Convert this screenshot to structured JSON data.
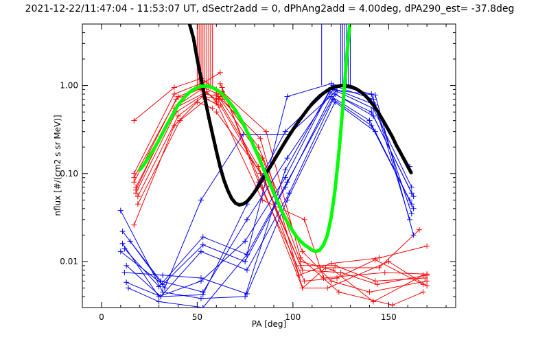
{
  "chart_data": {
    "type": "scatter",
    "title": "2021-12-22/11:47:04 - 11:53:07 UT, dSectr2add = 0, dPhAng2add = 4.00deg, dPA290_est= -37.8deg",
    "xlabel": "PA [deg]",
    "ylabel": "nflux [#/(cm2 s sr MeV)]",
    "xlim": [
      -10,
      185
    ],
    "ylim": [
      0.003,
      5.0
    ],
    "yscale": "log",
    "x_ticks": [
      0,
      50,
      100,
      150
    ],
    "x_tick_labels": [
      "0",
      "50",
      "100",
      "150"
    ],
    "y_ticks": [
      0.01,
      0.1,
      1.0
    ],
    "y_tick_labels": [
      "0.01",
      "0.10",
      "1.00"
    ],
    "grid": false,
    "legend": "none",
    "colors": {
      "red": "#ff0000",
      "blue": "#0000ff",
      "black": "#000000",
      "green": "#00ff00"
    },
    "vertical_lines": [
      {
        "color": "#ff0000",
        "x": [
          50,
          51,
          52,
          53,
          54,
          55,
          56,
          57,
          58
        ],
        "y_from": 0.9,
        "y_to": 5.0
      },
      {
        "color": "#0000ff",
        "x": [
          115,
          125,
          126,
          127,
          128,
          129,
          130
        ],
        "y_from": 1.0,
        "y_to": 5.0
      }
    ],
    "series": [
      {
        "color": "#ff0000",
        "x": [
          17,
          38,
          52,
          60
        ],
        "y": [
          0.4,
          0.95,
          1.2,
          0.9
        ]
      },
      {
        "color": "#ff0000",
        "x": [
          17,
          38,
          54,
          62
        ],
        "y": [
          0.1,
          0.8,
          1.1,
          1.4
        ]
      },
      {
        "color": "#ff0000",
        "x": [
          17,
          40,
          55,
          63
        ],
        "y": [
          0.09,
          0.75,
          1.0,
          0.85
        ]
      },
      {
        "color": "#ff0000",
        "x": [
          17,
          39,
          53,
          61
        ],
        "y": [
          0.08,
          0.7,
          0.95,
          0.8
        ]
      },
      {
        "color": "#ff0000",
        "x": [
          18,
          40,
          52,
          60
        ],
        "y": [
          0.07,
          0.6,
          0.9,
          0.7
        ]
      },
      {
        "color": "#ff0000",
        "x": [
          18,
          38,
          55,
          60
        ],
        "y": [
          0.065,
          0.55,
          0.85,
          0.65
        ]
      },
      {
        "color": "#ff0000",
        "x": [
          18,
          39,
          54,
          62
        ],
        "y": [
          0.06,
          0.5,
          0.8,
          0.75
        ]
      },
      {
        "color": "#ff0000",
        "x": [
          19,
          40,
          53,
          63
        ],
        "y": [
          0.055,
          0.45,
          0.75,
          0.7
        ]
      },
      {
        "color": "#ff0000",
        "x": [
          19,
          41,
          55,
          61
        ],
        "y": [
          0.045,
          0.4,
          0.7,
          0.6
        ]
      },
      {
        "color": "#ff0000",
        "x": [
          17,
          38,
          50,
          58
        ],
        "y": [
          0.026,
          0.35,
          0.65,
          0.55
        ]
      },
      {
        "color": "#ff0000",
        "x": [
          60,
          82,
          105,
          120,
          140,
          170
        ],
        "y": [
          0.9,
          0.2,
          0.013,
          0.006,
          0.0045,
          0.006
        ]
      },
      {
        "color": "#ff0000",
        "x": [
          60,
          84,
          104,
          121,
          142,
          168
        ],
        "y": [
          0.8,
          0.15,
          0.01,
          0.008,
          0.0035,
          0.007
        ]
      },
      {
        "color": "#ff0000",
        "x": [
          61,
          82,
          104,
          122,
          143,
          169
        ],
        "y": [
          0.7,
          0.12,
          0.009,
          0.009,
          0.006,
          0.0065
        ]
      },
      {
        "color": "#ff0000",
        "x": [
          62,
          83,
          105,
          125,
          144,
          170
        ],
        "y": [
          0.6,
          0.1,
          0.008,
          0.0075,
          0.0055,
          0.007
        ]
      },
      {
        "color": "#ff0000",
        "x": [
          60,
          85,
          103,
          120,
          145,
          170
        ],
        "y": [
          0.5,
          0.09,
          0.007,
          0.0095,
          0.011,
          0.015
        ]
      },
      {
        "color": "#ff0000",
        "x": [
          63,
          82,
          106,
          123,
          143,
          168
        ],
        "y": [
          0.95,
          0.08,
          0.006,
          0.0065,
          0.0105,
          0.0055
        ]
      },
      {
        "color": "#ff0000",
        "x": [
          62,
          84,
          105,
          118,
          150,
          170
        ],
        "y": [
          1.05,
          0.07,
          0.005,
          0.005,
          0.01,
          0.0053
        ]
      },
      {
        "color": "#ff0000",
        "x": [
          63,
          86,
          104,
          124,
          152,
          168
        ],
        "y": [
          0.85,
          0.3,
          0.011,
          0.0045,
          0.0032,
          0.0045
        ]
      },
      {
        "color": "#ff0000",
        "x": [
          61,
          83,
          105,
          117,
          145,
          166
        ],
        "y": [
          0.75,
          0.25,
          0.005,
          0.0085,
          0.0085,
          0.023
        ]
      },
      {
        "color": "#ff0000",
        "x": [
          60,
          84,
          106,
          116,
          148,
          170
        ],
        "y": [
          0.65,
          0.05,
          0.03,
          0.0065,
          0.0075,
          0.0072
        ]
      },
      {
        "color": "#0000ff",
        "x": [
          10,
          32,
          52,
          75,
          96,
          120,
          143,
          161
        ],
        "y": [
          0.038,
          0.0045,
          0.0038,
          0.004,
          0.11,
          0.95,
          0.6,
          0.12
        ]
      },
      {
        "color": "#0000ff",
        "x": [
          11,
          31,
          53,
          76,
          97,
          121,
          142,
          162
        ],
        "y": [
          0.022,
          0.006,
          0.0045,
          0.03,
          0.15,
          0.9,
          0.55,
          0.07
        ]
      },
      {
        "color": "#0000ff",
        "x": [
          11,
          30,
          52,
          75,
          96,
          119,
          141,
          162
        ],
        "y": [
          0.016,
          0.004,
          0.006,
          0.017,
          0.09,
          0.85,
          0.5,
          0.06
        ]
      },
      {
        "color": "#0000ff",
        "x": [
          12,
          30,
          53,
          76,
          97,
          122,
          142,
          163
        ],
        "y": [
          0.014,
          0.0052,
          0.019,
          0.012,
          0.08,
          0.8,
          0.45,
          0.055
        ]
      },
      {
        "color": "#0000ff",
        "x": [
          10,
          32,
          53,
          75,
          96,
          120,
          140,
          161
        ],
        "y": [
          0.013,
          0.0055,
          0.0155,
          0.01,
          0.07,
          0.75,
          0.4,
          0.05
        ]
      },
      {
        "color": "#0000ff",
        "x": [
          13,
          31,
          52,
          76,
          98,
          121,
          141,
          162
        ],
        "y": [
          0.009,
          0.004,
          0.013,
          0.008,
          0.06,
          0.7,
          0.35,
          0.045
        ]
      },
      {
        "color": "#0000ff",
        "x": [
          12,
          32,
          52,
          76,
          97,
          122,
          143,
          163
        ],
        "y": [
          0.0075,
          0.007,
          0.0065,
          0.0043,
          0.05,
          0.65,
          0.3,
          0.04
        ]
      },
      {
        "color": "#0000ff",
        "x": [
          13,
          31,
          53,
          76,
          96,
          121,
          142,
          162
        ],
        "y": [
          0.0058,
          0.004,
          0.0042,
          0.045,
          0.3,
          1.0,
          0.7,
          0.035
        ]
      },
      {
        "color": "#0000ff",
        "x": [
          14,
          30,
          53,
          76,
          97,
          120,
          141,
          161
        ],
        "y": [
          0.005,
          0.0035,
          0.003,
          0.012,
          0.75,
          1.05,
          0.8,
          0.03
        ]
      },
      {
        "color": "#0000ff",
        "x": [
          15,
          33,
          52,
          74,
          98,
          123,
          143,
          163
        ],
        "y": [
          0.017,
          0.005,
          0.05,
          0.28,
          0.28,
          0.88,
          0.78,
          0.02
        ]
      }
    ],
    "curves": [
      {
        "color": "#000000",
        "x": [
          46,
          48,
          50,
          52,
          54,
          56,
          58,
          60,
          62,
          64,
          66,
          68,
          70,
          72,
          74,
          76,
          78,
          80,
          82,
          84,
          86,
          88,
          90,
          92,
          94,
          96,
          98,
          100,
          102,
          104,
          106,
          108,
          110,
          112,
          114,
          116,
          118,
          120,
          122,
          124,
          126,
          128,
          130,
          132,
          134,
          136,
          138,
          140,
          142,
          144,
          146,
          148,
          150,
          152,
          154,
          156,
          158,
          160,
          162
        ],
        "y": [
          5.0,
          3.5,
          2.0,
          1.2,
          0.72,
          0.44,
          0.28,
          0.18,
          0.118,
          0.084,
          0.064,
          0.052,
          0.046,
          0.044,
          0.045,
          0.048,
          0.054,
          0.062,
          0.072,
          0.085,
          0.1,
          0.118,
          0.14,
          0.165,
          0.195,
          0.23,
          0.27,
          0.315,
          0.365,
          0.42,
          0.48,
          0.55,
          0.62,
          0.69,
          0.76,
          0.82,
          0.88,
          0.93,
          0.965,
          0.99,
          1.0,
          0.995,
          0.975,
          0.94,
          0.89,
          0.83,
          0.76,
          0.68,
          0.6,
          0.52,
          0.44,
          0.37,
          0.31,
          0.26,
          0.21,
          0.175,
          0.145,
          0.12,
          0.1
        ]
      },
      {
        "color": "#00ff00",
        "x": [
          20,
          22,
          24,
          26,
          28,
          30,
          32,
          34,
          36,
          38,
          40,
          42,
          44,
          46,
          48,
          50,
          52,
          54,
          56,
          58,
          60,
          62,
          64,
          66,
          68,
          70,
          72,
          74,
          76,
          78,
          80,
          82,
          84,
          86,
          88,
          90,
          92,
          94,
          96,
          98,
          100,
          102,
          104,
          106,
          108,
          110,
          112,
          114,
          116,
          118,
          120,
          122,
          124,
          126,
          128,
          130
        ],
        "y": [
          0.11,
          0.125,
          0.145,
          0.17,
          0.2,
          0.24,
          0.29,
          0.35,
          0.42,
          0.5,
          0.6,
          0.68,
          0.76,
          0.84,
          0.9,
          0.95,
          0.98,
          0.99,
          0.98,
          0.95,
          0.9,
          0.84,
          0.76,
          0.68,
          0.6,
          0.52,
          0.44,
          0.37,
          0.3,
          0.245,
          0.195,
          0.155,
          0.122,
          0.096,
          0.076,
          0.06,
          0.048,
          0.038,
          0.031,
          0.026,
          0.022,
          0.019,
          0.017,
          0.0155,
          0.0145,
          0.0135,
          0.013,
          0.0135,
          0.0155,
          0.02,
          0.032,
          0.065,
          0.17,
          0.55,
          2.0,
          6.0
        ]
      }
    ]
  }
}
